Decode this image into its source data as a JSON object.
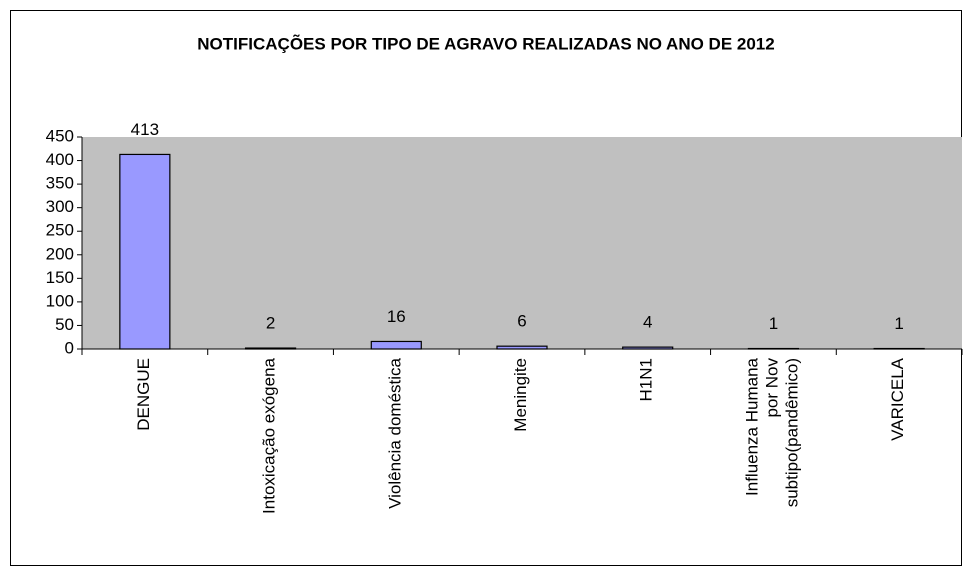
{
  "chart_data": {
    "type": "bar",
    "title": "NOTIFICAÇÕES POR TIPO DE AGRAVO REALIZADAS NO ANO DE 2012",
    "categories": [
      "DENGUE",
      "Intoxicação exógena",
      "Violência doméstica",
      "Meningite",
      "H1N1",
      "Influenza Humana por Nov subtipo(pandêmico)",
      "VARICELA"
    ],
    "values": [
      413,
      2,
      16,
      6,
      4,
      1,
      1
    ],
    "color": "#9999ff",
    "ylim": [
      0,
      450
    ],
    "yticks": [
      0,
      50,
      100,
      150,
      200,
      250,
      300,
      350,
      400,
      450
    ],
    "grid": false
  }
}
